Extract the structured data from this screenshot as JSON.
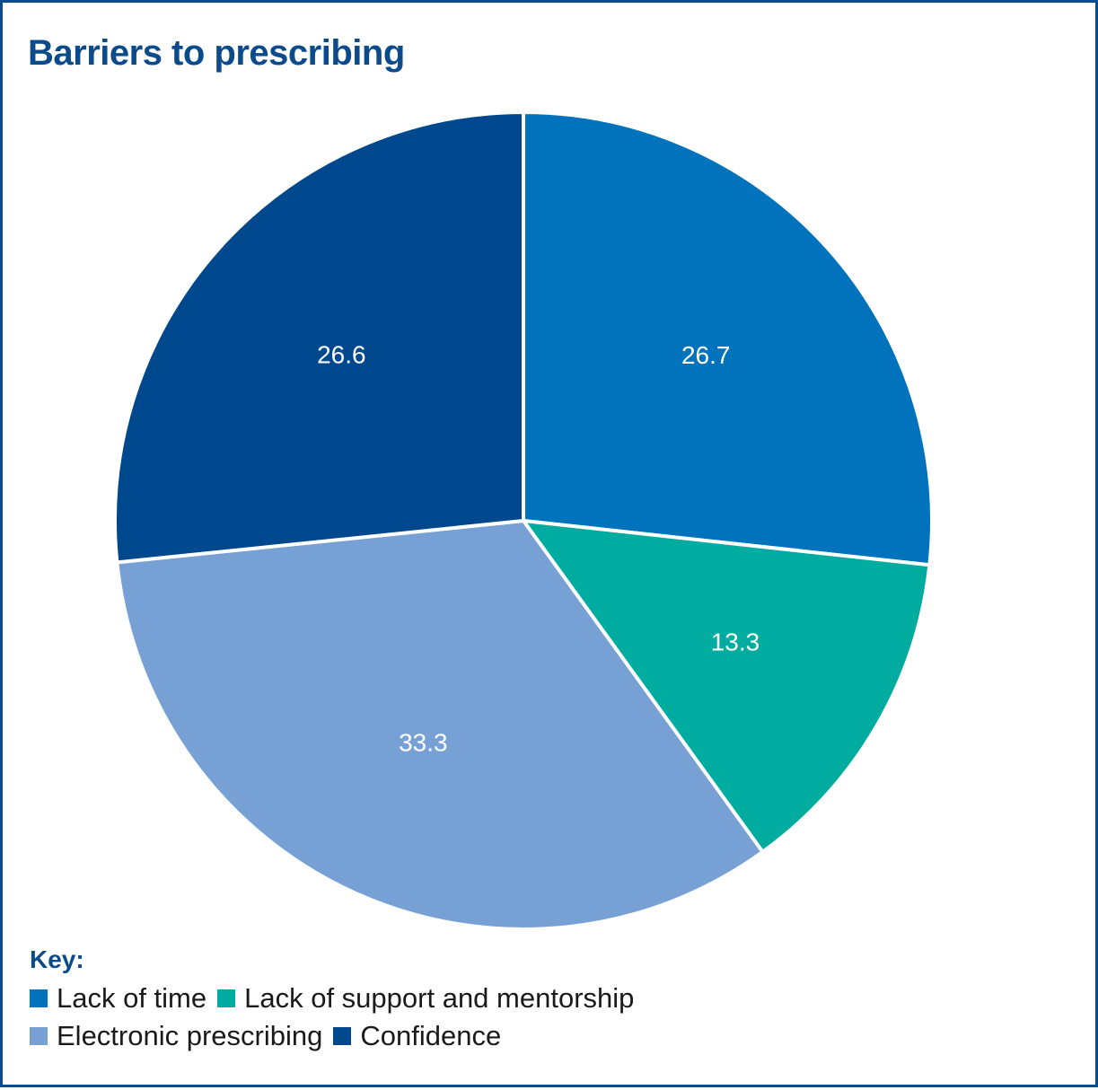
{
  "chart_data": {
    "type": "pie",
    "title": "Barriers to prescribing",
    "slices": [
      {
        "label": "Lack of time",
        "value": 26.7,
        "display": "26.7",
        "color": "#0073bc"
      },
      {
        "label": "Lack of support and mentorship",
        "value": 13.3,
        "display": "13.3",
        "color": "#00aca0"
      },
      {
        "label": "Electronic prescribing",
        "value": 33.3,
        "display": "33.3",
        "color": "#77a1d4"
      },
      {
        "label": "Confidence",
        "value": 26.6,
        "display": "26.6",
        "color": "#00488d"
      }
    ],
    "start_angle": "12 o'clock",
    "direction": "clockwise",
    "legend": {
      "title": "Key:",
      "placement": "bottom-left"
    }
  }
}
